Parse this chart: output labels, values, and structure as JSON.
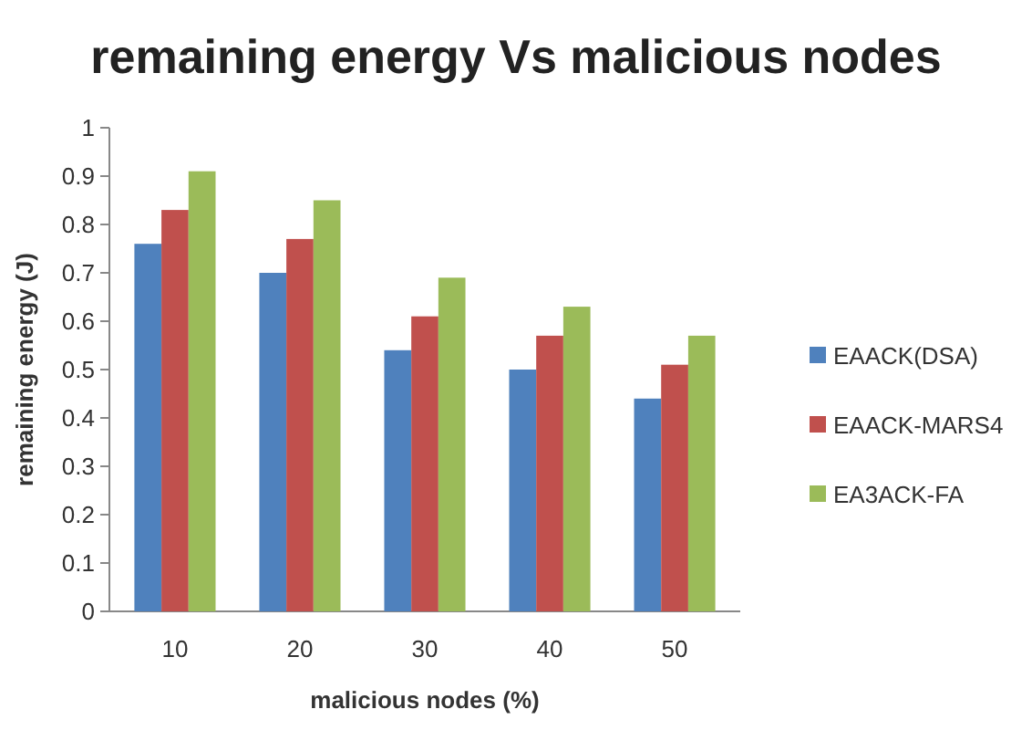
{
  "chart_data": {
    "type": "bar",
    "title": "remaining energy Vs malicious nodes",
    "xlabel": "malicious nodes (%)",
    "ylabel": "remaining energy (J)",
    "categories": [
      "10",
      "20",
      "30",
      "40",
      "50"
    ],
    "series": [
      {
        "name": "EAACK(DSA)",
        "color": "#4f81bd",
        "values": [
          0.76,
          0.7,
          0.54,
          0.5,
          0.44
        ]
      },
      {
        "name": "EAACK-MARS4",
        "color": "#c0504d",
        "values": [
          0.83,
          0.77,
          0.61,
          0.57,
          0.51
        ]
      },
      {
        "name": "EA3ACK-FA",
        "color": "#9bbb59",
        "values": [
          0.91,
          0.85,
          0.69,
          0.63,
          0.57
        ]
      }
    ],
    "ylim": [
      0,
      1
    ],
    "yticks": [
      0,
      0.1,
      0.2,
      0.3,
      0.4,
      0.5,
      0.6,
      0.7,
      0.8,
      0.9,
      1
    ],
    "grid": false,
    "legend": "right"
  }
}
